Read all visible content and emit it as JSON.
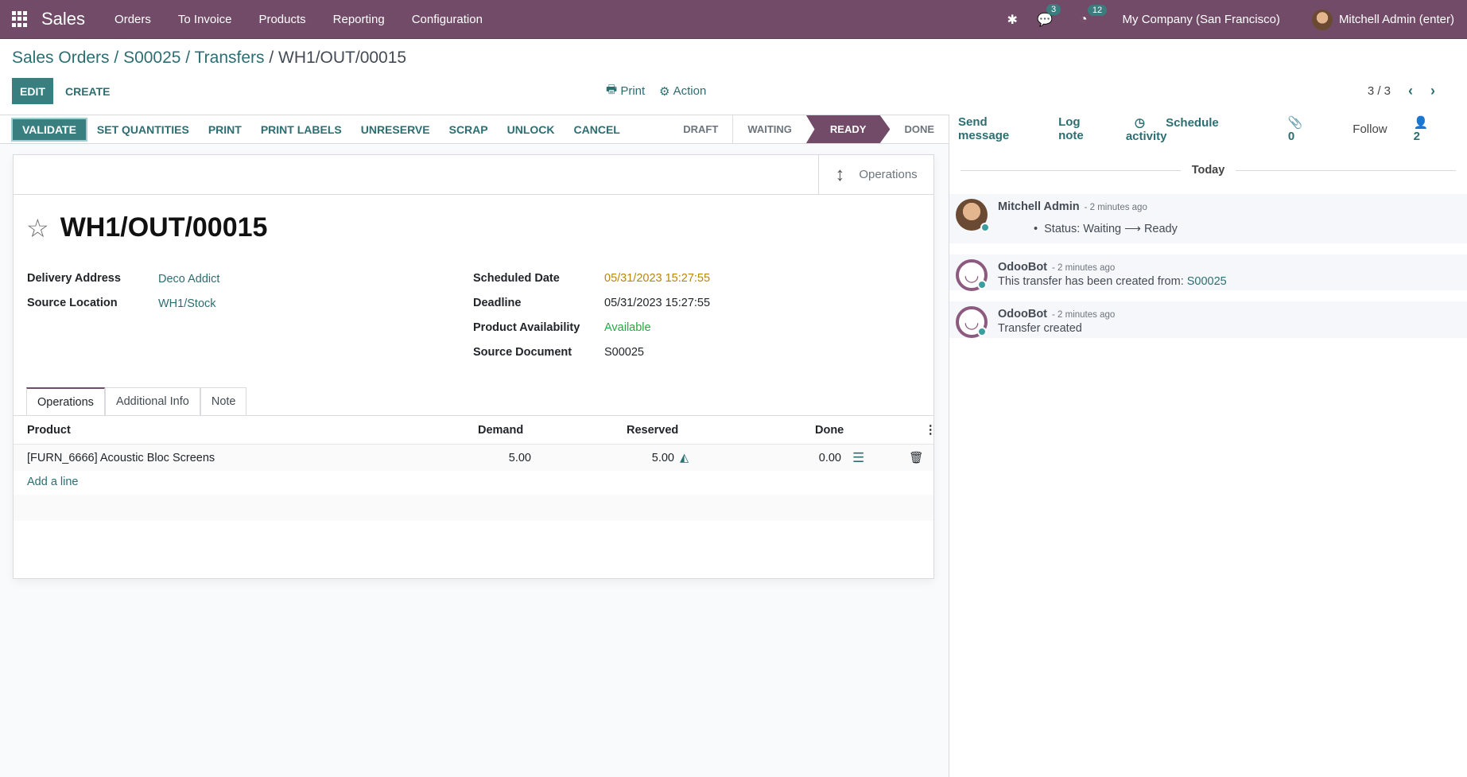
{
  "navbar": {
    "app": "Sales",
    "menus": [
      "Orders",
      "To Invoice",
      "Products",
      "Reporting",
      "Configuration"
    ],
    "messages_count": "3",
    "activities_count": "12",
    "company": "My Company (San Francisco)",
    "user": "Mitchell Admin (enter)"
  },
  "breadcrumb": {
    "items": [
      "Sales Orders",
      "S00025",
      "Transfers"
    ],
    "current": "WH1/OUT/00015",
    "sep": " / "
  },
  "controls": {
    "edit": "EDIT",
    "create": "CREATE",
    "print": "Print",
    "action": "Action",
    "pager": "3 / 3"
  },
  "header_buttons": [
    "VALIDATE",
    "SET QUANTITIES",
    "PRINT",
    "PRINT LABELS",
    "UNRESERVE",
    "SCRAP",
    "UNLOCK",
    "CANCEL"
  ],
  "stages": {
    "items": [
      "DRAFT",
      "WAITING",
      "READY",
      "DONE"
    ],
    "active": "READY"
  },
  "smart_button": {
    "label": "Operations"
  },
  "record": {
    "title": "WH1/OUT/00015",
    "left_fields": [
      {
        "label": "Delivery Address",
        "value": "Deco Addict"
      },
      {
        "label": "Source Location",
        "value": "WH1/Stock"
      }
    ],
    "right_fields": [
      {
        "label": "Scheduled Date",
        "value": "05/31/2023 15:27:55"
      },
      {
        "label": "Deadline",
        "value": "05/31/2023 15:27:55"
      },
      {
        "label": "Product Availability",
        "value": "Available"
      },
      {
        "label": "Source Document",
        "value": "S00025"
      }
    ]
  },
  "tabs": [
    "Operations",
    "Additional Info",
    "Note"
  ],
  "table": {
    "columns": [
      "Product",
      "Demand",
      "Reserved",
      "Done"
    ],
    "rows": [
      {
        "product": "[FURN_6666] Acoustic Bloc Screens",
        "demand": "5.00",
        "reserved": "5.00",
        "done": "0.00"
      }
    ],
    "add_line": "Add a line"
  },
  "chatter": {
    "send_message": "Send message",
    "log_note": "Log note",
    "schedule_activity": "Schedule activity",
    "attachments": "0",
    "follow": "Follow",
    "followers": "2",
    "today": "Today",
    "messages": [
      {
        "author": "Mitchell Admin",
        "when": "- 2 minutes ago",
        "body": "Status: Waiting ⟶ Ready"
      },
      {
        "author": "OdooBot",
        "when": "- 2 minutes ago",
        "body": "This transfer has been created from: ",
        "link": "S00025"
      },
      {
        "author": "OdooBot",
        "when": "- 2 minutes ago",
        "body": "Transfer created"
      }
    ]
  },
  "colors": {
    "brand": "#714B67",
    "accent": "#3a7f80",
    "warning_date": "#b8860b",
    "available": "#28a745"
  }
}
